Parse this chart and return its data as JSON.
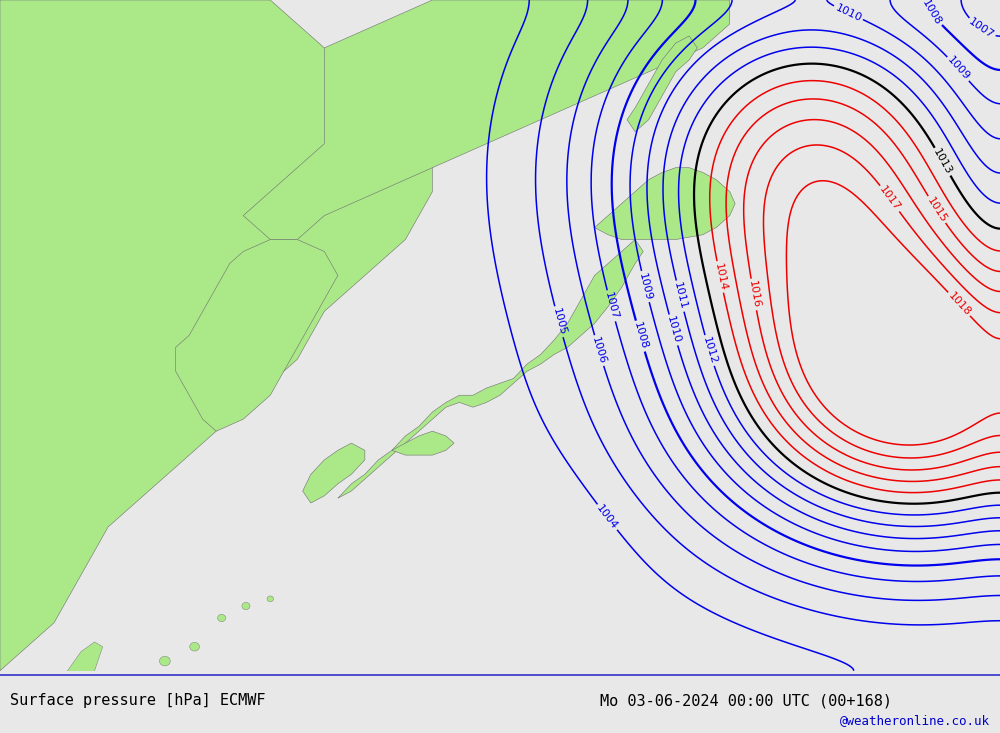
{
  "title_left": "Surface pressure [hPa] ECMWF",
  "title_right": "Mo 03-06-2024 00:00 UTC (00+168)",
  "credit": "@weatheronline.co.uk",
  "background_sea": "#c8c8c8",
  "background_land": "#aae888",
  "isobar_colors": {
    "low": "#0000ee",
    "mid": "#000000",
    "high": "#ee0000"
  },
  "pressure_levels": [
    1004,
    1005,
    1006,
    1007,
    1008,
    1009,
    1010,
    1011,
    1012,
    1013,
    1014,
    1015,
    1016,
    1017,
    1018
  ],
  "lon_range": [
    118,
    155
  ],
  "lat_range": [
    24,
    52
  ],
  "footer_bg": "#e8e8e8"
}
